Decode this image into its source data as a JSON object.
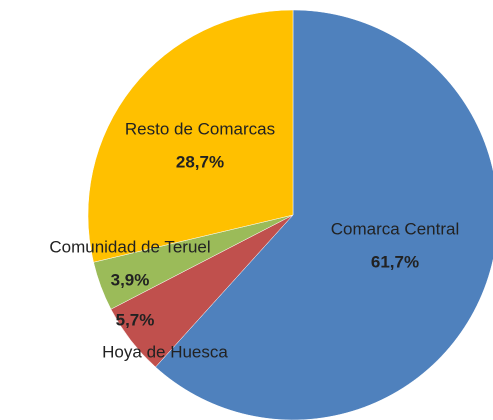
{
  "chart_data": {
    "type": "pie",
    "categories": [
      "Comarca Central",
      "Hoya de Huesca",
      "Comunidad de Teruel",
      "Resto de Comarcas"
    ],
    "values": [
      61.7,
      5.7,
      3.9,
      28.7
    ],
    "value_labels": [
      "61,7%",
      "5,7%",
      "3,9%",
      "28,7%"
    ],
    "colors": [
      "#4f81bd",
      "#c0504d",
      "#9bbb59",
      "#ffc000"
    ]
  }
}
